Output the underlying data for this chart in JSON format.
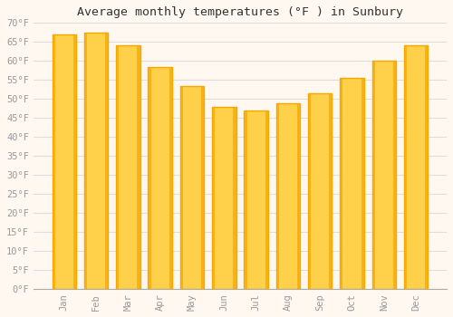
{
  "title": "Average monthly temperatures (°F ) in Sunbury",
  "months": [
    "Jan",
    "Feb",
    "Mar",
    "Apr",
    "May",
    "Jun",
    "Jul",
    "Aug",
    "Sep",
    "Oct",
    "Nov",
    "Dec"
  ],
  "values": [
    67,
    67.5,
    64,
    58.5,
    53.5,
    48,
    47,
    49,
    51.5,
    55.5,
    60,
    64
  ],
  "bar_color_center": "#FFD04A",
  "bar_color_edge": "#F5A800",
  "ylim": [
    0,
    70
  ],
  "yticks": [
    0,
    5,
    10,
    15,
    20,
    25,
    30,
    35,
    40,
    45,
    50,
    55,
    60,
    65,
    70
  ],
  "grid_color": "#dddddd",
  "background_color": "#FFF8F0",
  "plot_bg_color": "#FFF8F0",
  "title_fontsize": 9.5,
  "tick_fontsize": 7.5,
  "tick_font_color": "#999999",
  "title_color": "#333333",
  "bar_width": 0.75
}
